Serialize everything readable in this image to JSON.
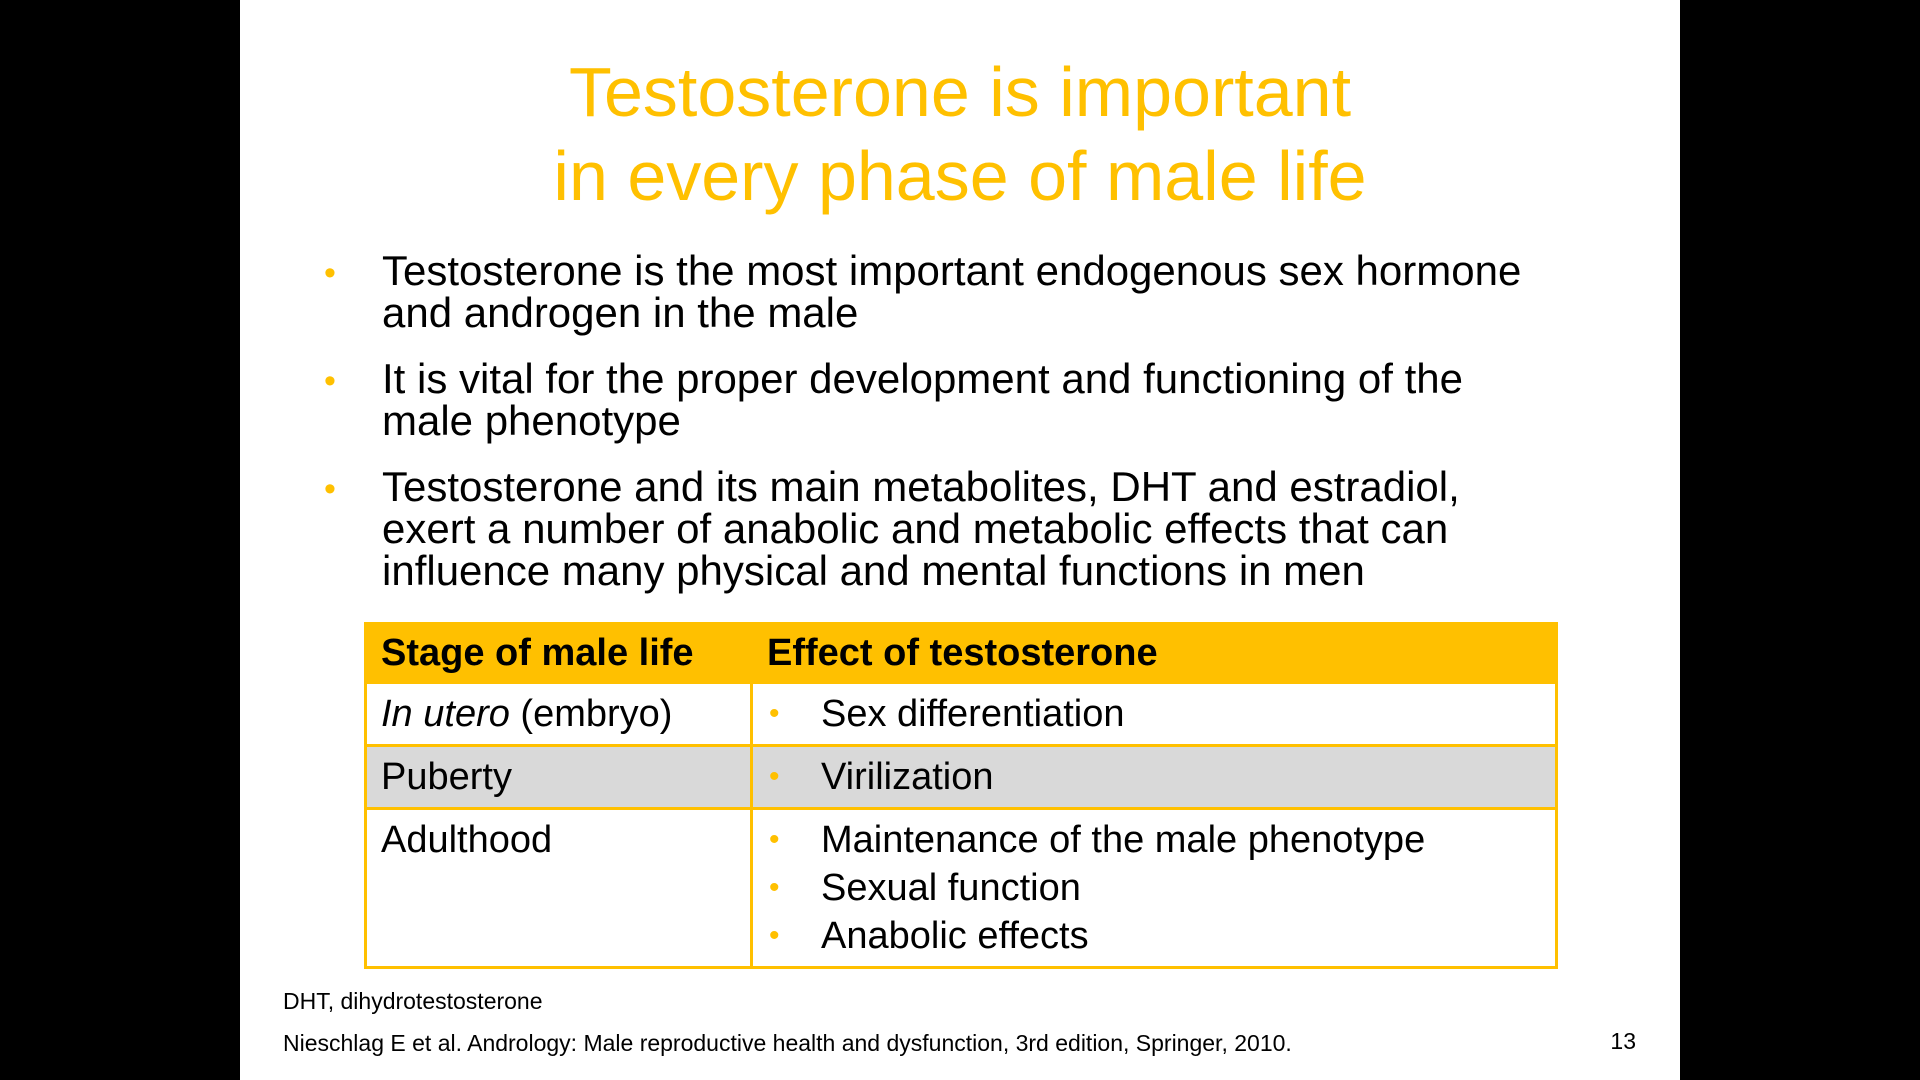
{
  "slide": {
    "title_lines": [
      "Testosterone is important",
      "in every phase of male life"
    ],
    "bullets": [
      [
        "Testosterone is the most important endogenous sex hormone",
        "and androgen in the male"
      ],
      [
        "It is vital for the proper development and functioning of the",
        "male phenotype"
      ],
      [
        "Testosterone and its main metabolites, DHT and estradiol,",
        "exert a number of anabolic and metabolic effects that can",
        "influence many physical and mental functions in men"
      ]
    ],
    "bullet_glyph": "•",
    "table": {
      "headers": [
        "Stage of male life",
        "Effect of testosterone"
      ],
      "rows": [
        {
          "stage_italic": "In utero",
          "stage_rest": " (embryo)",
          "effects": [
            "Sex differentiation"
          ]
        },
        {
          "stage_italic": "",
          "stage_rest": "Puberty",
          "effects": [
            "Virilization"
          ]
        },
        {
          "stage_italic": "",
          "stage_rest": "Adulthood",
          "effects": [
            "Maintenance of the male phenotype",
            "Sexual function",
            "Anabolic effects"
          ]
        }
      ]
    },
    "footnote_abbreviation": "DHT, dihydrotestosterone",
    "reference": "Nieschlag E et al. Andrology: Male reproductive health and dysfunction, 3rd edition, Springer, 2010.",
    "page_number": "13"
  },
  "colors": {
    "accent": "#FFC000",
    "row_shade": "#D9D9D9",
    "background": "#000000",
    "slide_background": "#FFFFFF"
  }
}
